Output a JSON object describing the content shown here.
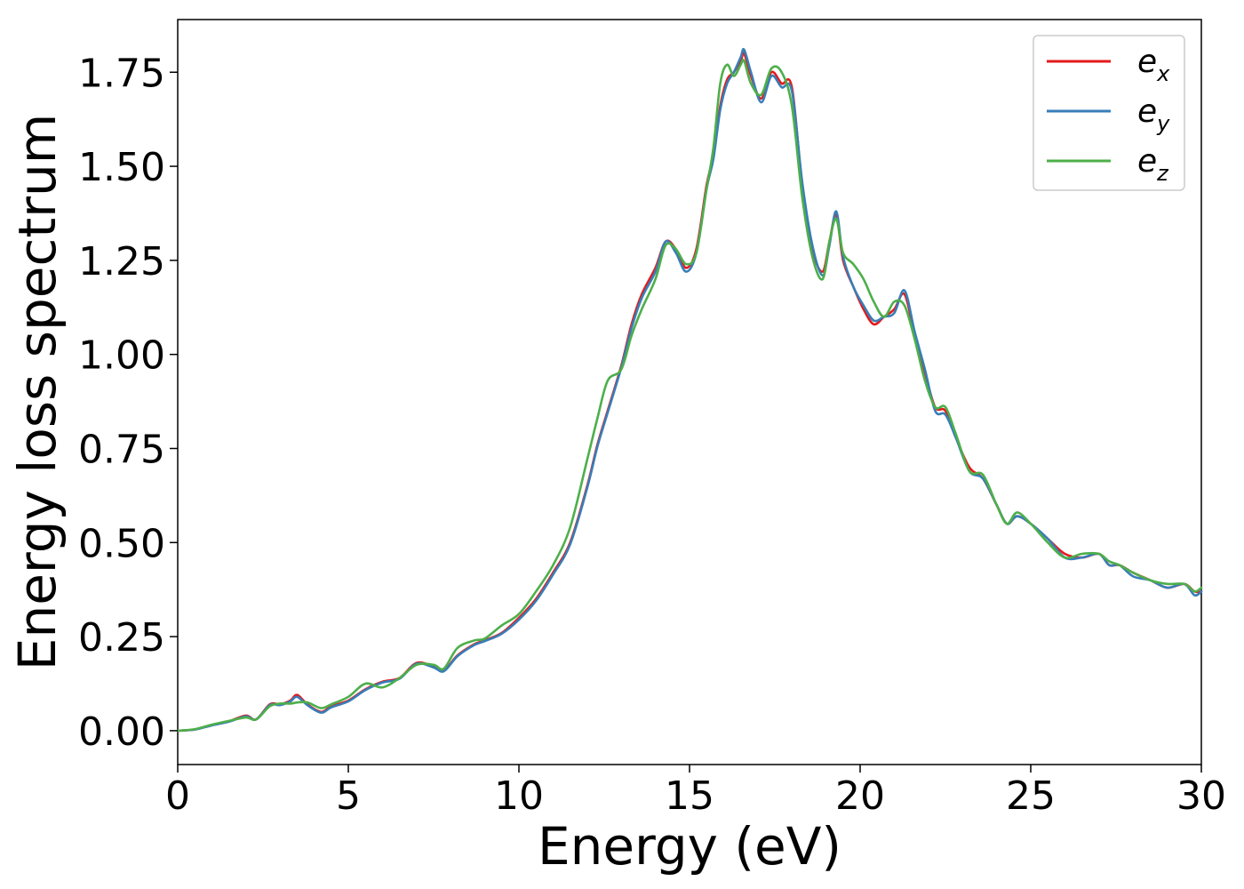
{
  "chart_data": {
    "type": "line",
    "title": "",
    "xlabel": "Energy (eV)",
    "ylabel": "Energy loss spectrum",
    "xlim": [
      0,
      30
    ],
    "ylim": [
      -0.09,
      1.89
    ],
    "xticks": [
      0,
      5,
      10,
      15,
      20,
      25,
      30
    ],
    "yticks": [
      0.0,
      0.25,
      0.5,
      0.75,
      1.0,
      1.25,
      1.5,
      1.75
    ],
    "xtick_labels": [
      "0",
      "5",
      "10",
      "15",
      "20",
      "25",
      "30"
    ],
    "ytick_labels": [
      "0.00",
      "0.25",
      "0.50",
      "0.75",
      "1.00",
      "1.25",
      "1.50",
      "1.75"
    ],
    "grid": false,
    "legend": "top-right",
    "series": [
      {
        "name": "e_x",
        "label_base": "e",
        "label_sub": "x",
        "color": "#e41a1c",
        "x": [
          0,
          0.5,
          1,
          1.5,
          2,
          2.3,
          2.7,
          3,
          3.3,
          3.5,
          3.8,
          4.2,
          4.5,
          5,
          5.5,
          6,
          6.5,
          7,
          7.5,
          7.8,
          8.2,
          8.7,
          9,
          9.5,
          10,
          10.5,
          11,
          11.5,
          12,
          12.3,
          12.6,
          13,
          13.3,
          13.6,
          14,
          14.3,
          14.6,
          14.9,
          15.2,
          15.5,
          15.7,
          15.9,
          16.1,
          16.3,
          16.5,
          16.6,
          16.8,
          17.1,
          17.4,
          17.7,
          18,
          18.3,
          18.6,
          18.9,
          19.1,
          19.3,
          19.5,
          19.8,
          20.1,
          20.4,
          20.7,
          21,
          21.3,
          21.6,
          21.9,
          22.2,
          22.5,
          22.8,
          23.2,
          23.6,
          24,
          24.3,
          24.6,
          25,
          25.5,
          26,
          26.5,
          27,
          27.3,
          27.6,
          28,
          28.5,
          29,
          29.5,
          29.8,
          30
        ],
        "y": [
          0,
          0.003,
          0.015,
          0.025,
          0.04,
          0.03,
          0.07,
          0.07,
          0.08,
          0.095,
          0.07,
          0.05,
          0.065,
          0.08,
          0.11,
          0.13,
          0.14,
          0.18,
          0.17,
          0.16,
          0.2,
          0.23,
          0.24,
          0.26,
          0.3,
          0.35,
          0.42,
          0.5,
          0.65,
          0.76,
          0.85,
          0.97,
          1.08,
          1.16,
          1.23,
          1.3,
          1.28,
          1.23,
          1.28,
          1.45,
          1.53,
          1.66,
          1.73,
          1.75,
          1.78,
          1.8,
          1.74,
          1.68,
          1.75,
          1.72,
          1.71,
          1.45,
          1.28,
          1.22,
          1.3,
          1.37,
          1.25,
          1.18,
          1.12,
          1.08,
          1.1,
          1.12,
          1.16,
          1.05,
          0.95,
          0.86,
          0.85,
          0.78,
          0.7,
          0.67,
          0.6,
          0.55,
          0.57,
          0.55,
          0.51,
          0.47,
          0.46,
          0.47,
          0.44,
          0.44,
          0.42,
          0.4,
          0.38,
          0.39,
          0.37,
          0.37
        ]
      },
      {
        "name": "e_y",
        "label_base": "e",
        "label_sub": "y",
        "color": "#377eb8",
        "x": [
          0,
          0.5,
          1,
          1.5,
          2,
          2.3,
          2.7,
          3,
          3.3,
          3.5,
          3.8,
          4.2,
          4.5,
          5,
          5.5,
          6,
          6.5,
          7,
          7.5,
          7.8,
          8.2,
          8.7,
          9,
          9.5,
          10,
          10.5,
          11,
          11.5,
          12,
          12.3,
          12.6,
          13,
          13.3,
          13.6,
          14,
          14.3,
          14.6,
          14.9,
          15.2,
          15.5,
          15.7,
          15.9,
          16.1,
          16.3,
          16.5,
          16.6,
          16.8,
          17.1,
          17.4,
          17.7,
          18,
          18.3,
          18.6,
          18.9,
          19.1,
          19.3,
          19.5,
          19.8,
          20.1,
          20.4,
          20.7,
          21,
          21.3,
          21.6,
          21.9,
          22.2,
          22.5,
          22.8,
          23.2,
          23.6,
          24,
          24.3,
          24.6,
          25,
          25.5,
          26,
          26.5,
          27,
          27.3,
          27.6,
          28,
          28.5,
          29,
          29.5,
          29.8,
          30
        ],
        "y": [
          0,
          0.003,
          0.014,
          0.024,
          0.038,
          0.03,
          0.068,
          0.068,
          0.078,
          0.09,
          0.068,
          0.048,
          0.062,
          0.078,
          0.108,
          0.128,
          0.138,
          0.178,
          0.168,
          0.158,
          0.198,
          0.228,
          0.238,
          0.258,
          0.295,
          0.345,
          0.415,
          0.495,
          0.645,
          0.755,
          0.845,
          0.965,
          1.07,
          1.15,
          1.22,
          1.3,
          1.27,
          1.22,
          1.27,
          1.44,
          1.52,
          1.65,
          1.72,
          1.75,
          1.79,
          1.81,
          1.75,
          1.67,
          1.74,
          1.71,
          1.7,
          1.46,
          1.29,
          1.21,
          1.29,
          1.38,
          1.26,
          1.18,
          1.13,
          1.09,
          1.1,
          1.11,
          1.17,
          1.06,
          0.96,
          0.85,
          0.84,
          0.78,
          0.69,
          0.67,
          0.6,
          0.55,
          0.57,
          0.55,
          0.51,
          0.46,
          0.46,
          0.47,
          0.44,
          0.44,
          0.41,
          0.4,
          0.38,
          0.39,
          0.36,
          0.37
        ]
      },
      {
        "name": "e_z",
        "label_base": "e",
        "label_sub": "z",
        "color": "#4daf4a",
        "x": [
          0,
          0.5,
          1,
          1.5,
          2,
          2.3,
          2.7,
          3,
          3.3,
          3.5,
          3.8,
          4.2,
          4.5,
          5,
          5.5,
          6,
          6.5,
          7,
          7.5,
          7.8,
          8.2,
          8.7,
          9,
          9.5,
          10,
          10.5,
          11,
          11.5,
          12,
          12.3,
          12.6,
          13,
          13.3,
          13.6,
          14,
          14.3,
          14.6,
          14.9,
          15.2,
          15.5,
          15.7,
          15.9,
          16.1,
          16.3,
          16.5,
          16.6,
          16.8,
          17.1,
          17.4,
          17.7,
          18,
          18.3,
          18.6,
          18.9,
          19.1,
          19.3,
          19.5,
          19.8,
          20.1,
          20.4,
          20.7,
          21,
          21.3,
          21.6,
          21.9,
          22.2,
          22.5,
          22.8,
          23.2,
          23.6,
          24,
          24.3,
          24.6,
          25,
          25.5,
          26,
          26.5,
          27,
          27.3,
          27.6,
          28,
          28.5,
          29,
          29.5,
          29.8,
          30
        ],
        "y": [
          0,
          0.004,
          0.016,
          0.026,
          0.035,
          0.03,
          0.065,
          0.072,
          0.072,
          0.075,
          0.075,
          0.06,
          0.07,
          0.09,
          0.125,
          0.115,
          0.14,
          0.175,
          0.175,
          0.165,
          0.22,
          0.24,
          0.245,
          0.28,
          0.31,
          0.37,
          0.44,
          0.54,
          0.72,
          0.83,
          0.93,
          0.96,
          1.05,
          1.12,
          1.2,
          1.29,
          1.28,
          1.24,
          1.27,
          1.44,
          1.55,
          1.72,
          1.77,
          1.74,
          1.77,
          1.78,
          1.72,
          1.69,
          1.76,
          1.75,
          1.66,
          1.42,
          1.26,
          1.2,
          1.3,
          1.36,
          1.27,
          1.24,
          1.2,
          1.14,
          1.1,
          1.14,
          1.13,
          1.04,
          0.93,
          0.86,
          0.86,
          0.79,
          0.69,
          0.68,
          0.6,
          0.55,
          0.58,
          0.55,
          0.5,
          0.46,
          0.47,
          0.47,
          0.45,
          0.44,
          0.42,
          0.4,
          0.39,
          0.39,
          0.37,
          0.38
        ]
      }
    ]
  }
}
